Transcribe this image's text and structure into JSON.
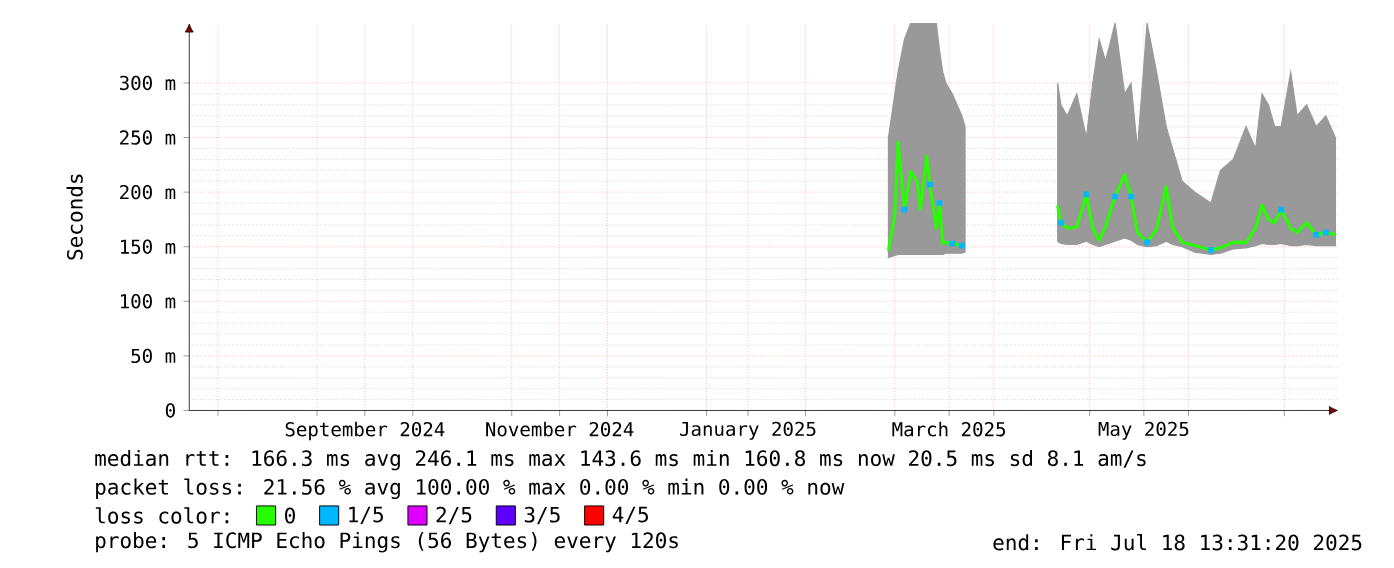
{
  "chart_data": {
    "type": "line",
    "ylabel": "Seconds",
    "legend_title": "loss color:",
    "legend": "bottom",
    "grid": true,
    "marker": "none",
    "xlim": [
      "2024-07-23",
      "2025-07-18"
    ],
    "xticks": [
      {
        "value": "2024-08-01",
        "label": null
      },
      {
        "value": "2024-09-01",
        "label": null
      },
      {
        "value": "2024-09-16",
        "label": "September 2024"
      },
      {
        "value": "2024-10-01",
        "label": null
      },
      {
        "value": "2024-11-01",
        "label": null
      },
      {
        "value": "2024-11-16",
        "label": "November 2024"
      },
      {
        "value": "2024-12-01",
        "label": null
      },
      {
        "value": "2025-01-01",
        "label": null
      },
      {
        "value": "2025-01-14",
        "label": "January 2025"
      },
      {
        "value": "2025-02-01",
        "label": null
      },
      {
        "value": "2025-03-01",
        "label": null
      },
      {
        "value": "2025-03-18",
        "label": "March 2025"
      },
      {
        "value": "2025-04-01",
        "label": null
      },
      {
        "value": "2025-05-01",
        "label": null
      },
      {
        "value": "2025-05-18",
        "label": "May 2025"
      },
      {
        "value": "2025-06-01",
        "label": null
      },
      {
        "value": "2025-07-01",
        "label": null
      }
    ],
    "ylim": [
      0,
      355
    ],
    "yticks": [
      0,
      {
        "value": 50,
        "label": "50 m"
      },
      {
        "value": 100,
        "label": "100 m"
      },
      {
        "value": 150,
        "label": "150 m"
      },
      {
        "value": 200,
        "label": "200 m"
      },
      {
        "value": 250,
        "label": "250 m"
      },
      {
        "value": 300,
        "label": "300 m"
      }
    ],
    "series": [
      {
        "name": "0",
        "color": "#26ff00",
        "x": [
          "2025-02-27",
          "2025-03-01",
          "2025-03-02",
          "2025-03-04",
          "2025-03-06",
          "2025-03-08",
          "2025-03-09",
          "2025-03-11",
          "2025-03-12",
          "2025-03-14",
          "2025-03-15",
          "2025-03-16",
          "2025-03-17",
          "2025-03-19",
          "2025-03-22",
          "2025-03-23",
          "2025-04-05",
          "2025-04-21",
          "2025-04-22",
          "2025-04-24",
          "2025-04-27",
          "2025-04-30",
          "2025-05-02",
          "2025-05-04",
          "2025-05-06",
          "2025-05-09",
          "2025-05-12",
          "2025-05-14",
          "2025-05-16",
          "2025-05-19",
          "2025-05-22",
          "2025-05-25",
          "2025-05-27",
          "2025-05-30",
          "2025-06-03",
          "2025-06-08",
          "2025-06-11",
          "2025-06-15",
          "2025-06-19",
          "2025-06-22",
          "2025-06-24",
          "2025-06-26",
          "2025-06-28",
          "2025-06-30",
          "2025-07-03",
          "2025-07-05",
          "2025-07-08",
          "2025-07-11",
          "2025-07-14",
          "2025-07-17"
        ],
        "values": [
          146,
          179,
          246,
          184,
          219,
          210,
          184,
          233,
          207,
          167,
          190,
          153,
          154,
          153,
          151,
          151,
          null,
          188,
          172,
          167,
          168,
          198,
          167,
          156,
          168,
          196,
          216,
          196,
          163,
          154,
          166,
          205,
          168,
          154,
          151,
          147,
          149,
          154,
          154,
          167,
          188,
          175,
          172,
          184,
          167,
          163,
          172,
          161,
          163,
          161
        ],
        "lower": [
          140,
          142,
          143,
          143,
          143,
          143,
          143,
          143,
          143,
          143,
          143,
          143,
          144,
          144,
          144,
          145,
          null,
          155,
          153,
          152,
          152,
          155,
          152,
          150,
          152,
          155,
          158,
          156,
          152,
          150,
          151,
          155,
          152,
          150,
          145,
          143,
          144,
          148,
          149,
          151,
          153,
          152,
          152,
          153,
          151,
          151,
          152,
          151,
          151,
          151
        ],
        "upper": [
          250,
          290,
          310,
          340,
          355,
          355,
          355,
          355,
          355,
          355,
          330,
          310,
          300,
          290,
          270,
          260,
          null,
          300,
          280,
          270,
          290,
          250,
          300,
          340,
          320,
          355,
          290,
          300,
          240,
          355,
          310,
          260,
          240,
          210,
          200,
          190,
          220,
          230,
          260,
          240,
          290,
          280,
          260,
          260,
          310,
          270,
          280,
          260,
          270,
          250
        ]
      },
      {
        "name": "1/5",
        "color": "#00b8ff",
        "type": "scatter",
        "marker": "square",
        "x": [
          "2025-03-04",
          "2025-03-12",
          "2025-03-15",
          "2025-03-19",
          "2025-03-22",
          "2025-04-22",
          "2025-04-30",
          "2025-05-09",
          "2025-05-14",
          "2025-05-19",
          "2025-06-08",
          "2025-06-30",
          "2025-07-11",
          "2025-07-14"
        ],
        "values": [
          184,
          207,
          190,
          153,
          151,
          172,
          198,
          196,
          196,
          154,
          147,
          184,
          161,
          163
        ]
      },
      {
        "name": "2/5",
        "color": "#dd00ff",
        "type": "scatter"
      },
      {
        "name": "3/5",
        "color": "#5e00ff",
        "type": "scatter"
      },
      {
        "name": "4/5",
        "color": "#ff0000",
        "type": "scatter"
      }
    ],
    "annotations": [
      "median rtt: 166.3 ms avg 246.1 ms max 143.6 ms min 160.8 ms now 20.5 ms sd 8.1 am/s",
      "packet loss: 21.56 % avg 100.00 % max 0.00 % min 0.00 % now",
      "probe: 5 ICMP Echo Pings (56 Bytes) every 120s",
      "end: Fri Jul 18 13:31:20 2025"
    ]
  }
}
